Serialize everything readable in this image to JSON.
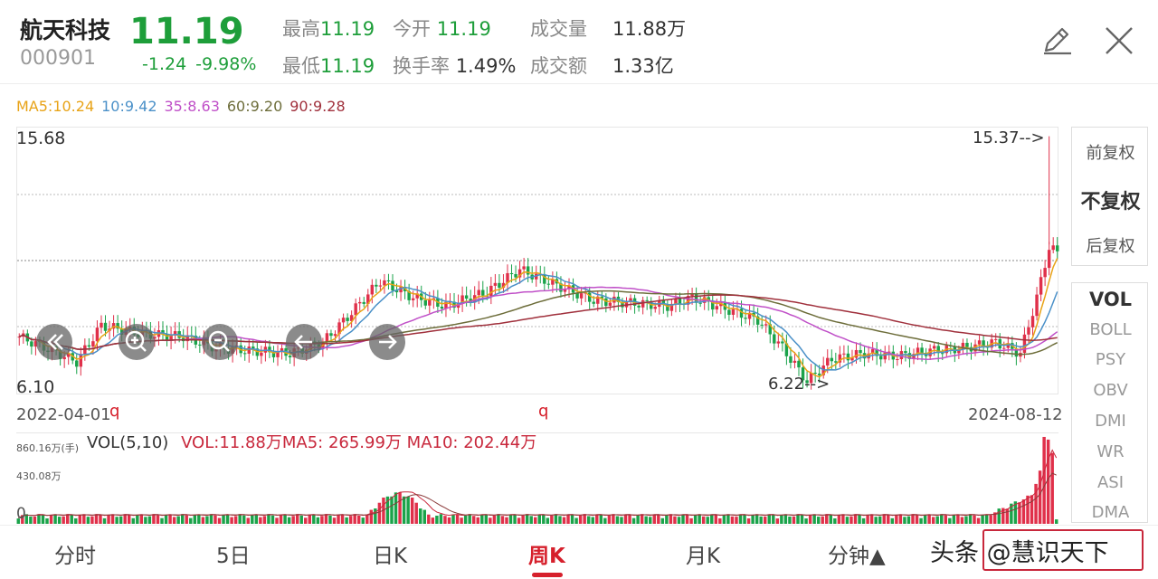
{
  "header": {
    "name": "航天科技",
    "code": "000901",
    "price": "11.19",
    "change": "-1.24",
    "change_pct": "-9.98%",
    "high_label": "最高",
    "high": "11.19",
    "open_label": "今开",
    "open": "11.19",
    "volume_label": "成交量",
    "volume": "11.88万",
    "low_label": "最低",
    "low": "11.19",
    "turnover_label": "换手率",
    "turnover": "1.49%",
    "amount_label": "成交额",
    "amount": "1.33亿"
  },
  "ma_legend": {
    "ma5": "MA5:10.24",
    "ma10": "10:9.42",
    "ma35": "35:8.63",
    "ma60": "60:9.20",
    "ma90": "90:9.28",
    "colors": {
      "ma5": "#e8a317",
      "ma10": "#4a90c8",
      "ma35": "#c050c8",
      "ma60": "#6d6d3a",
      "ma90": "#a0303c"
    }
  },
  "chart": {
    "y_max": "15.68",
    "y_min": "6.10",
    "high_mark": "15.37-->",
    "low_mark": "6.22-->",
    "date_start": "2022-04-01",
    "date_end": "2024-08-12",
    "marker_q1": "q",
    "marker_q2": "q",
    "up_color": "#e0304a",
    "down_color": "#1aa34a"
  },
  "fuquan": {
    "pre": "前复权",
    "none": "不复权",
    "post": "后复权"
  },
  "indicators": [
    "VOL",
    "BOLL",
    "PSY",
    "OBV",
    "DMI",
    "WR",
    "ASI",
    "DMA"
  ],
  "volume": {
    "title": "VOL(5,10)",
    "vol": "VOL:11.88万",
    "ma5": "MA5: 265.99万",
    "ma10": "MA10: 202.44万",
    "y_top": "860.16万(手)",
    "y_mid": "430.08万",
    "y_zero": "0"
  },
  "tabs": [
    "分时",
    "5日",
    "日K",
    "周K",
    "月K",
    "分钟▲"
  ],
  "watermark": "头条 @慧识天下"
}
